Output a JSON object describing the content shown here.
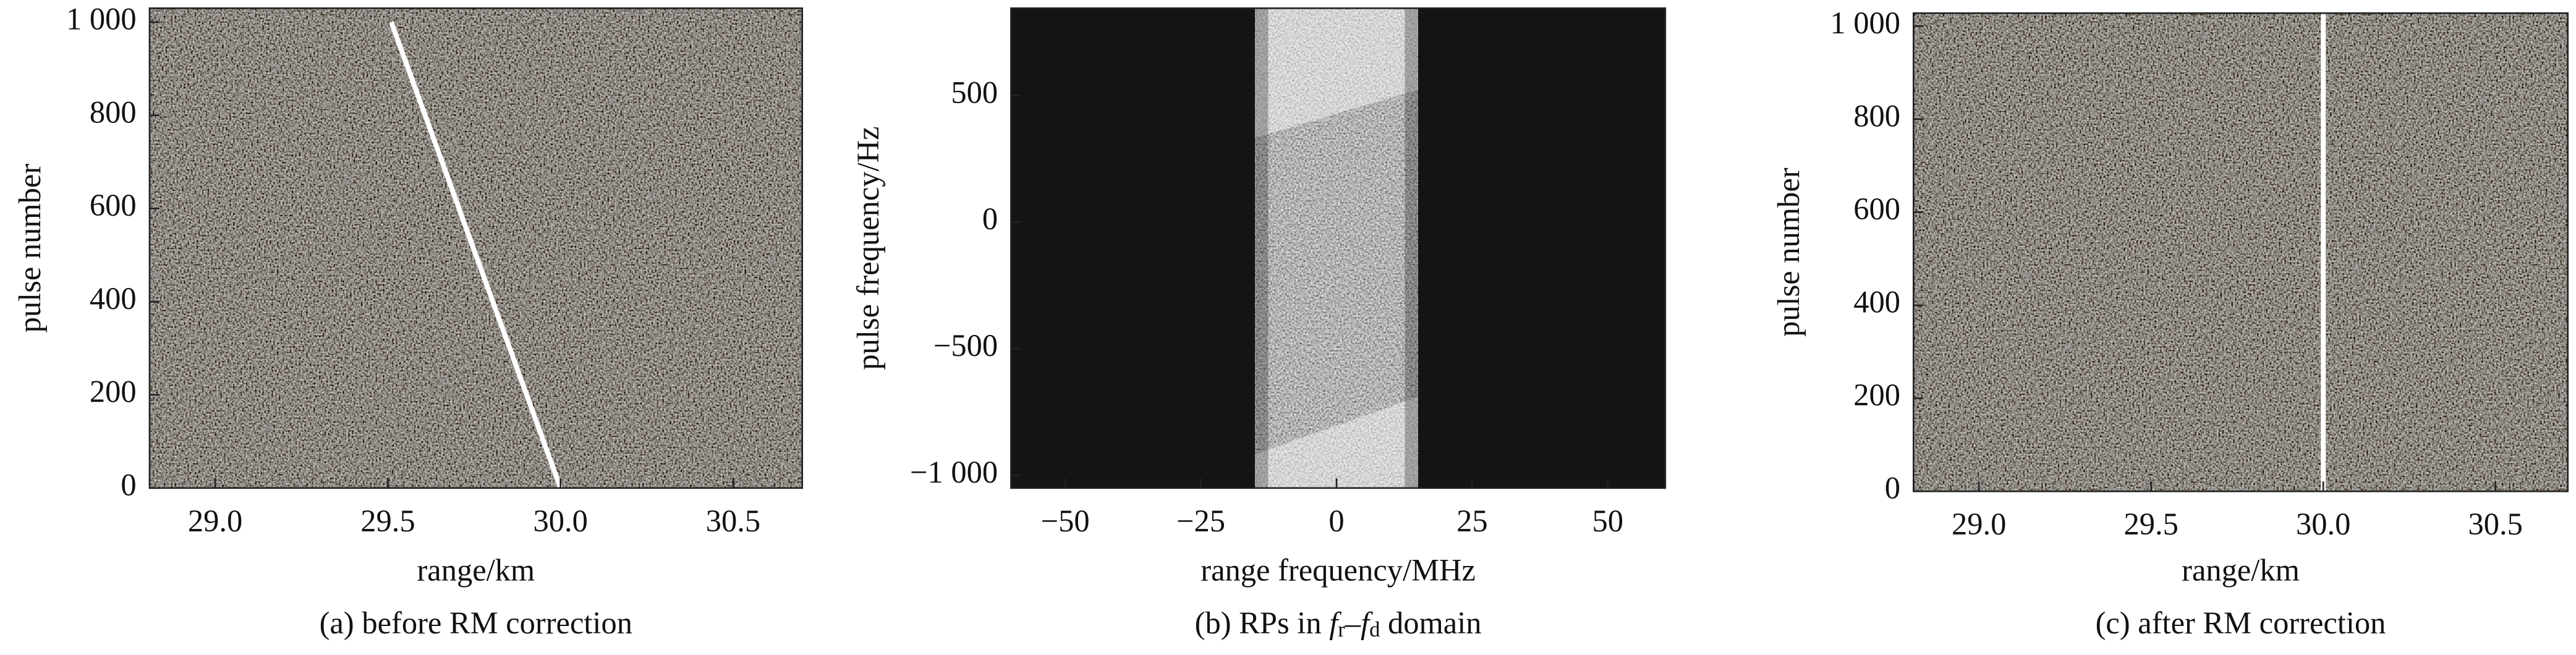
{
  "chart_data": [
    {
      "type": "line",
      "caption": "(a) before RM correction",
      "x_label": "range/km",
      "y_label": "pulse number",
      "series": [
        {
          "color": "#ffffff",
          "x": [
            29.51,
            30.0
          ],
          "values": [
            1000,
            0
          ]
        }
      ],
      "xlim": [
        28.81,
        30.7
      ],
      "xticks": [
        {
          "value": 29,
          "label": "29.0"
        },
        29.5,
        {
          "value": 30,
          "label": "30.0"
        },
        30.5
      ],
      "ylim": [
        0,
        1030
      ],
      "yticks": [
        0,
        200,
        400,
        600,
        800,
        {
          "value": 1000,
          "label": "1 000"
        }
      ]
    },
    {
      "type": "span",
      "caption_parts": [
        "(b) RPs in ",
        "f",
        "r",
        "–",
        "f",
        "d",
        " domain"
      ],
      "x_label": "range  frequency/MHz",
      "y_label": "pulse frequency/Hz",
      "span": [
        -15,
        15
      ],
      "xlim": [
        -60,
        60.6
      ],
      "xticks": [
        {
          "value": -50,
          "label": "−50"
        },
        {
          "value": -25,
          "label": "−25"
        },
        0,
        25,
        50
      ],
      "ylim": [
        -1050,
        845
      ],
      "yticks": [
        {
          "value": -1000,
          "label": "−1 000"
        },
        {
          "value": -500,
          "label": "−500"
        },
        0,
        500
      ]
    },
    {
      "type": "line",
      "caption": "(c) after RM correction",
      "x_label": "range/km",
      "y_label": "pulse number",
      "series": [
        {
          "color": "#ffffff",
          "x": [
            30.0,
            30.0
          ],
          "values": [
            0,
            1028
          ]
        }
      ],
      "xlim": [
        28.81,
        30.71
      ],
      "xticks": [
        {
          "value": 29,
          "label": "29.0"
        },
        29.5,
        {
          "value": 30,
          "label": "30.0"
        },
        30.5
      ],
      "ylim": [
        0,
        1028
      ],
      "yticks": [
        0,
        200,
        400,
        600,
        800,
        {
          "value": 1000,
          "label": "1 000"
        }
      ]
    }
  ]
}
